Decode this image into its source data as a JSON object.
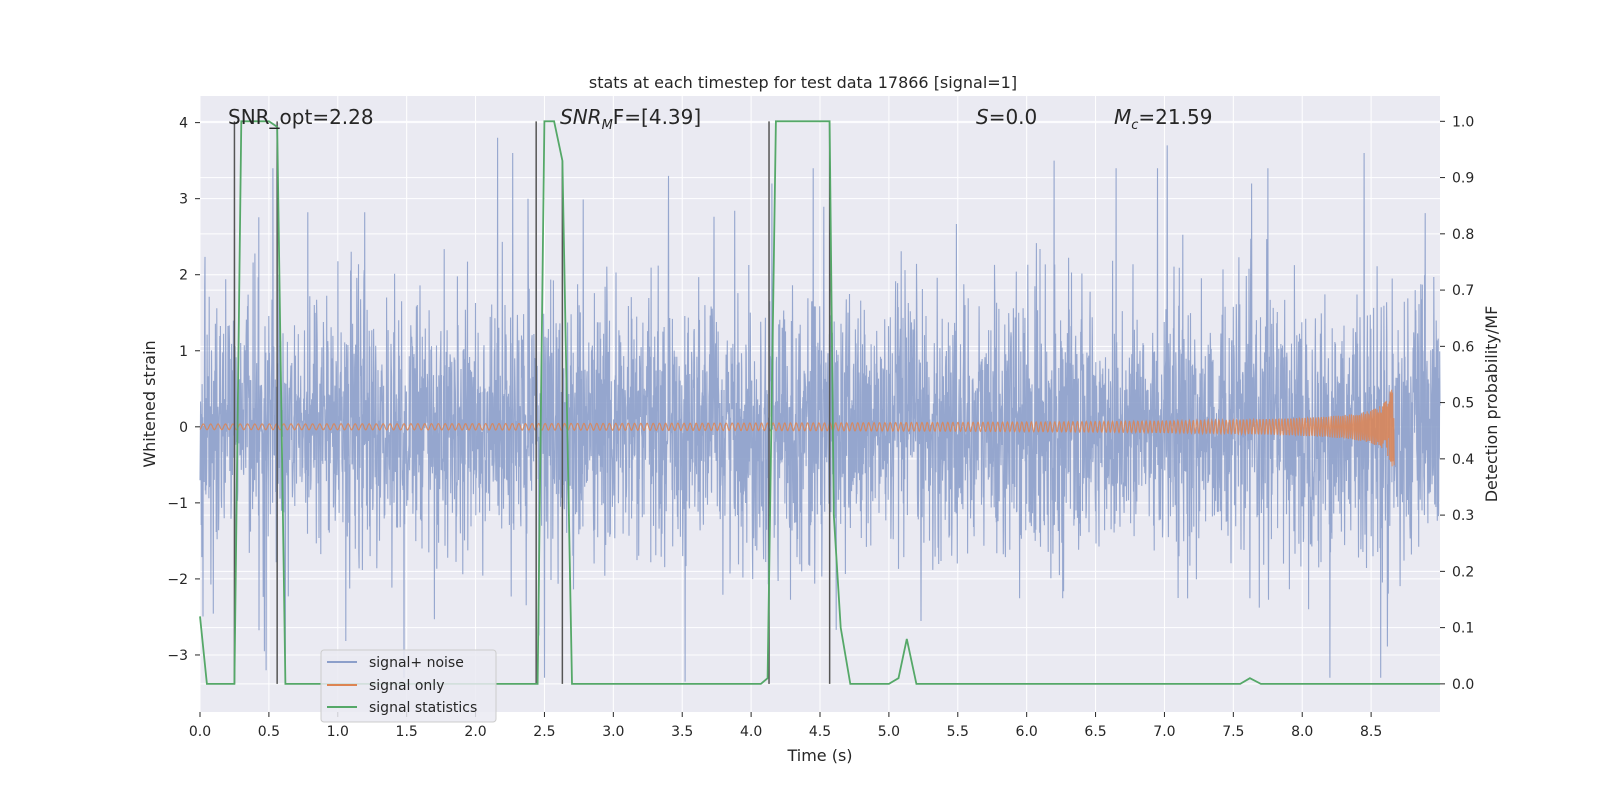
{
  "chart_data": {
    "type": "line",
    "title": "stats at each timestep for test data 17866 [signal=1]",
    "xlabel": "Time (s)",
    "ylabel": "Whitened strain",
    "ylabel_right": "Detection probability/MF",
    "xlim": [
      0.0,
      9.0
    ],
    "ylim": [
      -3.75,
      4.35
    ],
    "ylim_right": [
      -0.05,
      1.045
    ],
    "x_ticks": [
      "0.0",
      "0.5",
      "1.0",
      "1.5",
      "2.0",
      "2.5",
      "3.0",
      "3.5",
      "4.0",
      "4.5",
      "5.0",
      "5.5",
      "6.0",
      "6.5",
      "7.0",
      "7.5",
      "8.0",
      "8.5"
    ],
    "y_ticks": [
      "4",
      "3",
      "2",
      "1",
      "0",
      "−1",
      "−2",
      "−3"
    ],
    "y_tick_values": [
      4,
      3,
      2,
      1,
      0,
      -1,
      -2,
      -3
    ],
    "y_right_ticks": [
      "1.0",
      "0.9",
      "0.8",
      "0.7",
      "0.6",
      "0.5",
      "0.4",
      "0.3",
      "0.2",
      "0.1",
      "0.0"
    ],
    "y_right_tick_values": [
      1.0,
      0.9,
      0.8,
      0.7,
      0.6,
      0.5,
      0.4,
      0.3,
      0.2,
      0.1,
      0.0
    ],
    "grid": true,
    "colors": {
      "signal_noise": "#8c9fca",
      "signal_only": "#dd8452",
      "statistics": "#55a868",
      "vlines": "#555555",
      "background": "#eaeaf2",
      "grid": "#ffffff"
    },
    "annotations": {
      "snr_opt": "SNR_opt=2.28",
      "snr_mf_base": "SNR",
      "snr_mf_sub": "M",
      "snr_mf_rest": "F=[4.39]",
      "s_var": "S",
      "s_rest": "=0.0",
      "mc_var": "M",
      "mc_sub": "c",
      "mc_rest": "=21.59"
    },
    "legend": {
      "position": "lower-left",
      "items": [
        "signal+ noise",
        "signal only",
        "signal statistics"
      ]
    },
    "signal_noise": {
      "t_start": 0.0,
      "t_end": 9.0,
      "sigma": 0.85,
      "spikes": [
        [
          0.25,
          2.6
        ],
        [
          0.53,
          3.4
        ],
        [
          2.16,
          3.8
        ],
        [
          2.27,
          3.6
        ],
        [
          2.38,
          3.0
        ],
        [
          3.4,
          3.3
        ],
        [
          4.15,
          3.2
        ],
        [
          4.45,
          3.4
        ],
        [
          6.2,
          3.5
        ],
        [
          6.65,
          3.4
        ],
        [
          6.95,
          3.4
        ],
        [
          7.02,
          3.7
        ],
        [
          7.75,
          3.4
        ],
        [
          8.45,
          3.6
        ],
        [
          0.48,
          -3.2
        ],
        [
          0.62,
          -3.35
        ],
        [
          1.48,
          -3.3
        ],
        [
          2.5,
          -3.3
        ],
        [
          3.52,
          -3.35
        ],
        [
          8.2,
          -3.3
        ],
        [
          8.57,
          -3.3
        ]
      ]
    },
    "signal_only": {
      "t_start": 0.0,
      "t_peak": 8.65,
      "t_end": 8.67,
      "peak_amplitude": 0.52
    },
    "signal_statistics": {
      "x": [
        0.0,
        0.05,
        0.25,
        0.3,
        0.5,
        0.56,
        0.62,
        0.7,
        2.45,
        2.5,
        2.57,
        2.63,
        2.7,
        4.07,
        4.12,
        4.18,
        4.57,
        4.6,
        4.65,
        4.72,
        5.0,
        5.07,
        5.13,
        5.2,
        5.25,
        7.55,
        7.62,
        7.7,
        9.0
      ],
      "y": [
        0.12,
        0.0,
        0.0,
        1.0,
        1.0,
        0.99,
        0.0,
        0.0,
        0.0,
        1.0,
        1.0,
        0.93,
        0.0,
        0.0,
        0.01,
        1.0,
        1.0,
        0.3,
        0.1,
        0.0,
        0.0,
        0.01,
        0.08,
        0.0,
        0.0,
        0.0,
        0.01,
        0.0,
        0.0
      ]
    },
    "vlines": [
      {
        "x": 0.25,
        "y_range": [
          0.0,
          1.0
        ]
      },
      {
        "x": 0.56,
        "y_range": [
          0.0,
          1.0
        ]
      },
      {
        "x": 2.44,
        "y_range": [
          0.0,
          1.0
        ]
      },
      {
        "x": 2.63,
        "y_range": [
          0.0,
          0.93
        ]
      },
      {
        "x": 4.13,
        "y_range": [
          0.0,
          1.0
        ]
      },
      {
        "x": 4.57,
        "y_range": [
          0.0,
          1.0
        ]
      }
    ]
  }
}
